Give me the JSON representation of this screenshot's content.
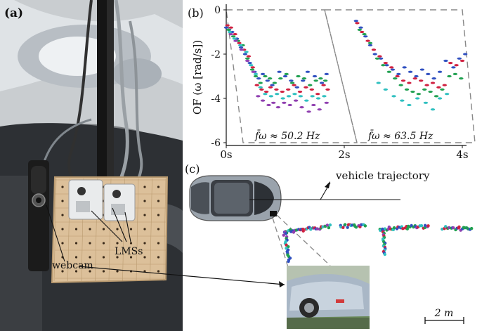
{
  "panel_a": {
    "label": "(a)",
    "labels": {
      "webcam": "webcam",
      "lms": "LMSs"
    }
  },
  "panel_b": {
    "label": "(b)",
    "ylabel": "OF (ω [rad/s])",
    "frequency_1": "f̄ω ≈ 50.2 Hz",
    "frequency_2": "f̄ω ≈ 63.5 Hz"
  },
  "panel_c": {
    "label": "(c)",
    "trajectory_label": "vehicle trajectory",
    "scale_label": "2 m"
  },
  "chart_data": {
    "type": "scatter",
    "xlabel": "",
    "ylabel": "OF (ω [rad/s])",
    "x_ticks": [
      "0s",
      "2s",
      "4s"
    ],
    "y_ticks": [
      "0",
      "-2",
      "-4",
      "-6"
    ],
    "xlim": [
      0,
      4.2
    ],
    "ylim": [
      -6,
      0.3
    ],
    "colors": [
      "#3050c0",
      "#d02040",
      "#20a050",
      "#30c0c0",
      "#9040b0"
    ],
    "series": [
      {
        "x": [
          0.0,
          0.05,
          0.1,
          0.18,
          0.25,
          0.32,
          0.4,
          0.48,
          0.55,
          0.62,
          0.7,
          0.78,
          0.9,
          1.0,
          1.1,
          1.2,
          1.3,
          1.38,
          1.5,
          1.62,
          1.7
        ],
        "y": [
          -0.8,
          -0.9,
          -1.0,
          -1.3,
          -1.7,
          -2.0,
          -2.4,
          -2.8,
          -3.1,
          -2.9,
          -3.2,
          -3.4,
          -2.8,
          -3.0,
          -3.2,
          -3.5,
          -3.2,
          -2.8,
          -3.0,
          -3.3,
          -2.9
        ]
      },
      {
        "x": [
          0.02,
          0.08,
          0.15,
          0.22,
          0.3,
          0.38,
          0.45,
          0.52,
          0.6,
          0.68,
          0.75,
          0.85,
          0.95,
          1.05,
          1.15,
          1.25,
          1.35,
          1.45,
          1.55,
          1.65,
          1.72
        ],
        "y": [
          -0.7,
          -0.8,
          -1.1,
          -1.5,
          -1.8,
          -2.1,
          -2.6,
          -3.4,
          -3.6,
          -3.7,
          -3.5,
          -3.6,
          -3.7,
          -3.6,
          -3.4,
          -3.7,
          -3.5,
          -3.6,
          -3.8,
          -3.4,
          -3.6
        ]
      },
      {
        "x": [
          0.04,
          0.12,
          0.2,
          0.28,
          0.36,
          0.44,
          0.5,
          0.58,
          0.66,
          0.74,
          0.82,
          0.92,
          1.02,
          1.12,
          1.22,
          1.32,
          1.42,
          1.52,
          1.6,
          1.68
        ],
        "y": [
          -0.9,
          -1.2,
          -1.4,
          -1.6,
          -2.2,
          -2.7,
          -3.0,
          -3.3,
          -3.0,
          -3.1,
          -3.3,
          -3.1,
          -2.9,
          -3.3,
          -3.0,
          -3.1,
          -3.4,
          -3.2,
          -3.1,
          -3.2
        ]
      },
      {
        "x": [
          0.06,
          0.14,
          0.24,
          0.34,
          0.42,
          0.5,
          0.58,
          0.66,
          0.76,
          0.86,
          0.96,
          1.06,
          1.16,
          1.26,
          1.36,
          1.46,
          1.56,
          1.66
        ],
        "y": [
          -1.0,
          -1.3,
          -1.6,
          -1.9,
          -2.5,
          -2.9,
          -3.5,
          -3.8,
          -3.9,
          -3.8,
          -4.0,
          -3.9,
          -3.8,
          -3.9,
          -4.1,
          -3.9,
          -4.0,
          -3.9
        ]
      },
      {
        "x": [
          0.08,
          0.16,
          0.26,
          0.36,
          0.46,
          0.54,
          0.62,
          0.72,
          0.8,
          0.88,
          0.98,
          1.08,
          1.18,
          1.28,
          1.4,
          1.48,
          1.58,
          1.7
        ],
        "y": [
          -1.1,
          -1.4,
          -1.8,
          -2.3,
          -2.8,
          -3.9,
          -4.1,
          -4.3,
          -4.2,
          -4.4,
          -4.2,
          -4.3,
          -4.1,
          -4.4,
          -4.6,
          -4.3,
          -4.5,
          -4.2
        ]
      },
      {
        "x": [
          2.2,
          2.28,
          2.36,
          2.44,
          2.52,
          2.62,
          2.72,
          2.82,
          2.92,
          3.02,
          3.12,
          3.22,
          3.32,
          3.42,
          3.52,
          3.62,
          3.72,
          3.85,
          3.95,
          4.05
        ],
        "y": [
          -0.5,
          -0.8,
          -1.2,
          -1.6,
          -2.0,
          -2.2,
          -2.5,
          -2.7,
          -2.9,
          -2.6,
          -2.8,
          -3.0,
          -2.7,
          -2.9,
          -3.1,
          -2.8,
          -2.3,
          -2.6,
          -2.2,
          -2.0
        ]
      },
      {
        "x": [
          2.22,
          2.3,
          2.4,
          2.5,
          2.6,
          2.7,
          2.8,
          2.9,
          3.0,
          3.1,
          3.2,
          3.3,
          3.4,
          3.5,
          3.6,
          3.7,
          3.8,
          3.9,
          4.0
        ],
        "y": [
          -0.6,
          -1.0,
          -1.4,
          -1.8,
          -2.1,
          -2.4,
          -2.6,
          -3.0,
          -3.2,
          -3.3,
          -3.1,
          -3.2,
          -3.4,
          -3.3,
          -3.5,
          -3.4,
          -2.4,
          -2.5,
          -2.3
        ]
      },
      {
        "x": [
          2.26,
          2.34,
          2.44,
          2.56,
          2.66,
          2.76,
          2.86,
          2.96,
          3.06,
          3.16,
          3.26,
          3.36,
          3.46,
          3.56,
          3.66,
          3.78,
          3.88,
          3.98
        ],
        "y": [
          -0.9,
          -1.1,
          -1.5,
          -2.2,
          -2.5,
          -2.8,
          -3.1,
          -3.4,
          -3.6,
          -3.7,
          -3.8,
          -3.6,
          -3.7,
          -3.9,
          -3.6,
          -3.0,
          -2.9,
          -3.1
        ]
      },
      {
        "x": [
          2.58,
          2.7,
          2.84,
          2.98,
          3.1,
          3.24,
          3.38,
          3.5,
          3.62,
          3.74
        ],
        "y": [
          -3.3,
          -3.6,
          -3.9,
          -4.1,
          -4.3,
          -4.0,
          -4.2,
          -4.5,
          -4.0,
          -3.8
        ]
      }
    ]
  },
  "colors": {
    "dash": "#888888",
    "board": "#dcc09a",
    "car_body": "#9aa3ac"
  }
}
